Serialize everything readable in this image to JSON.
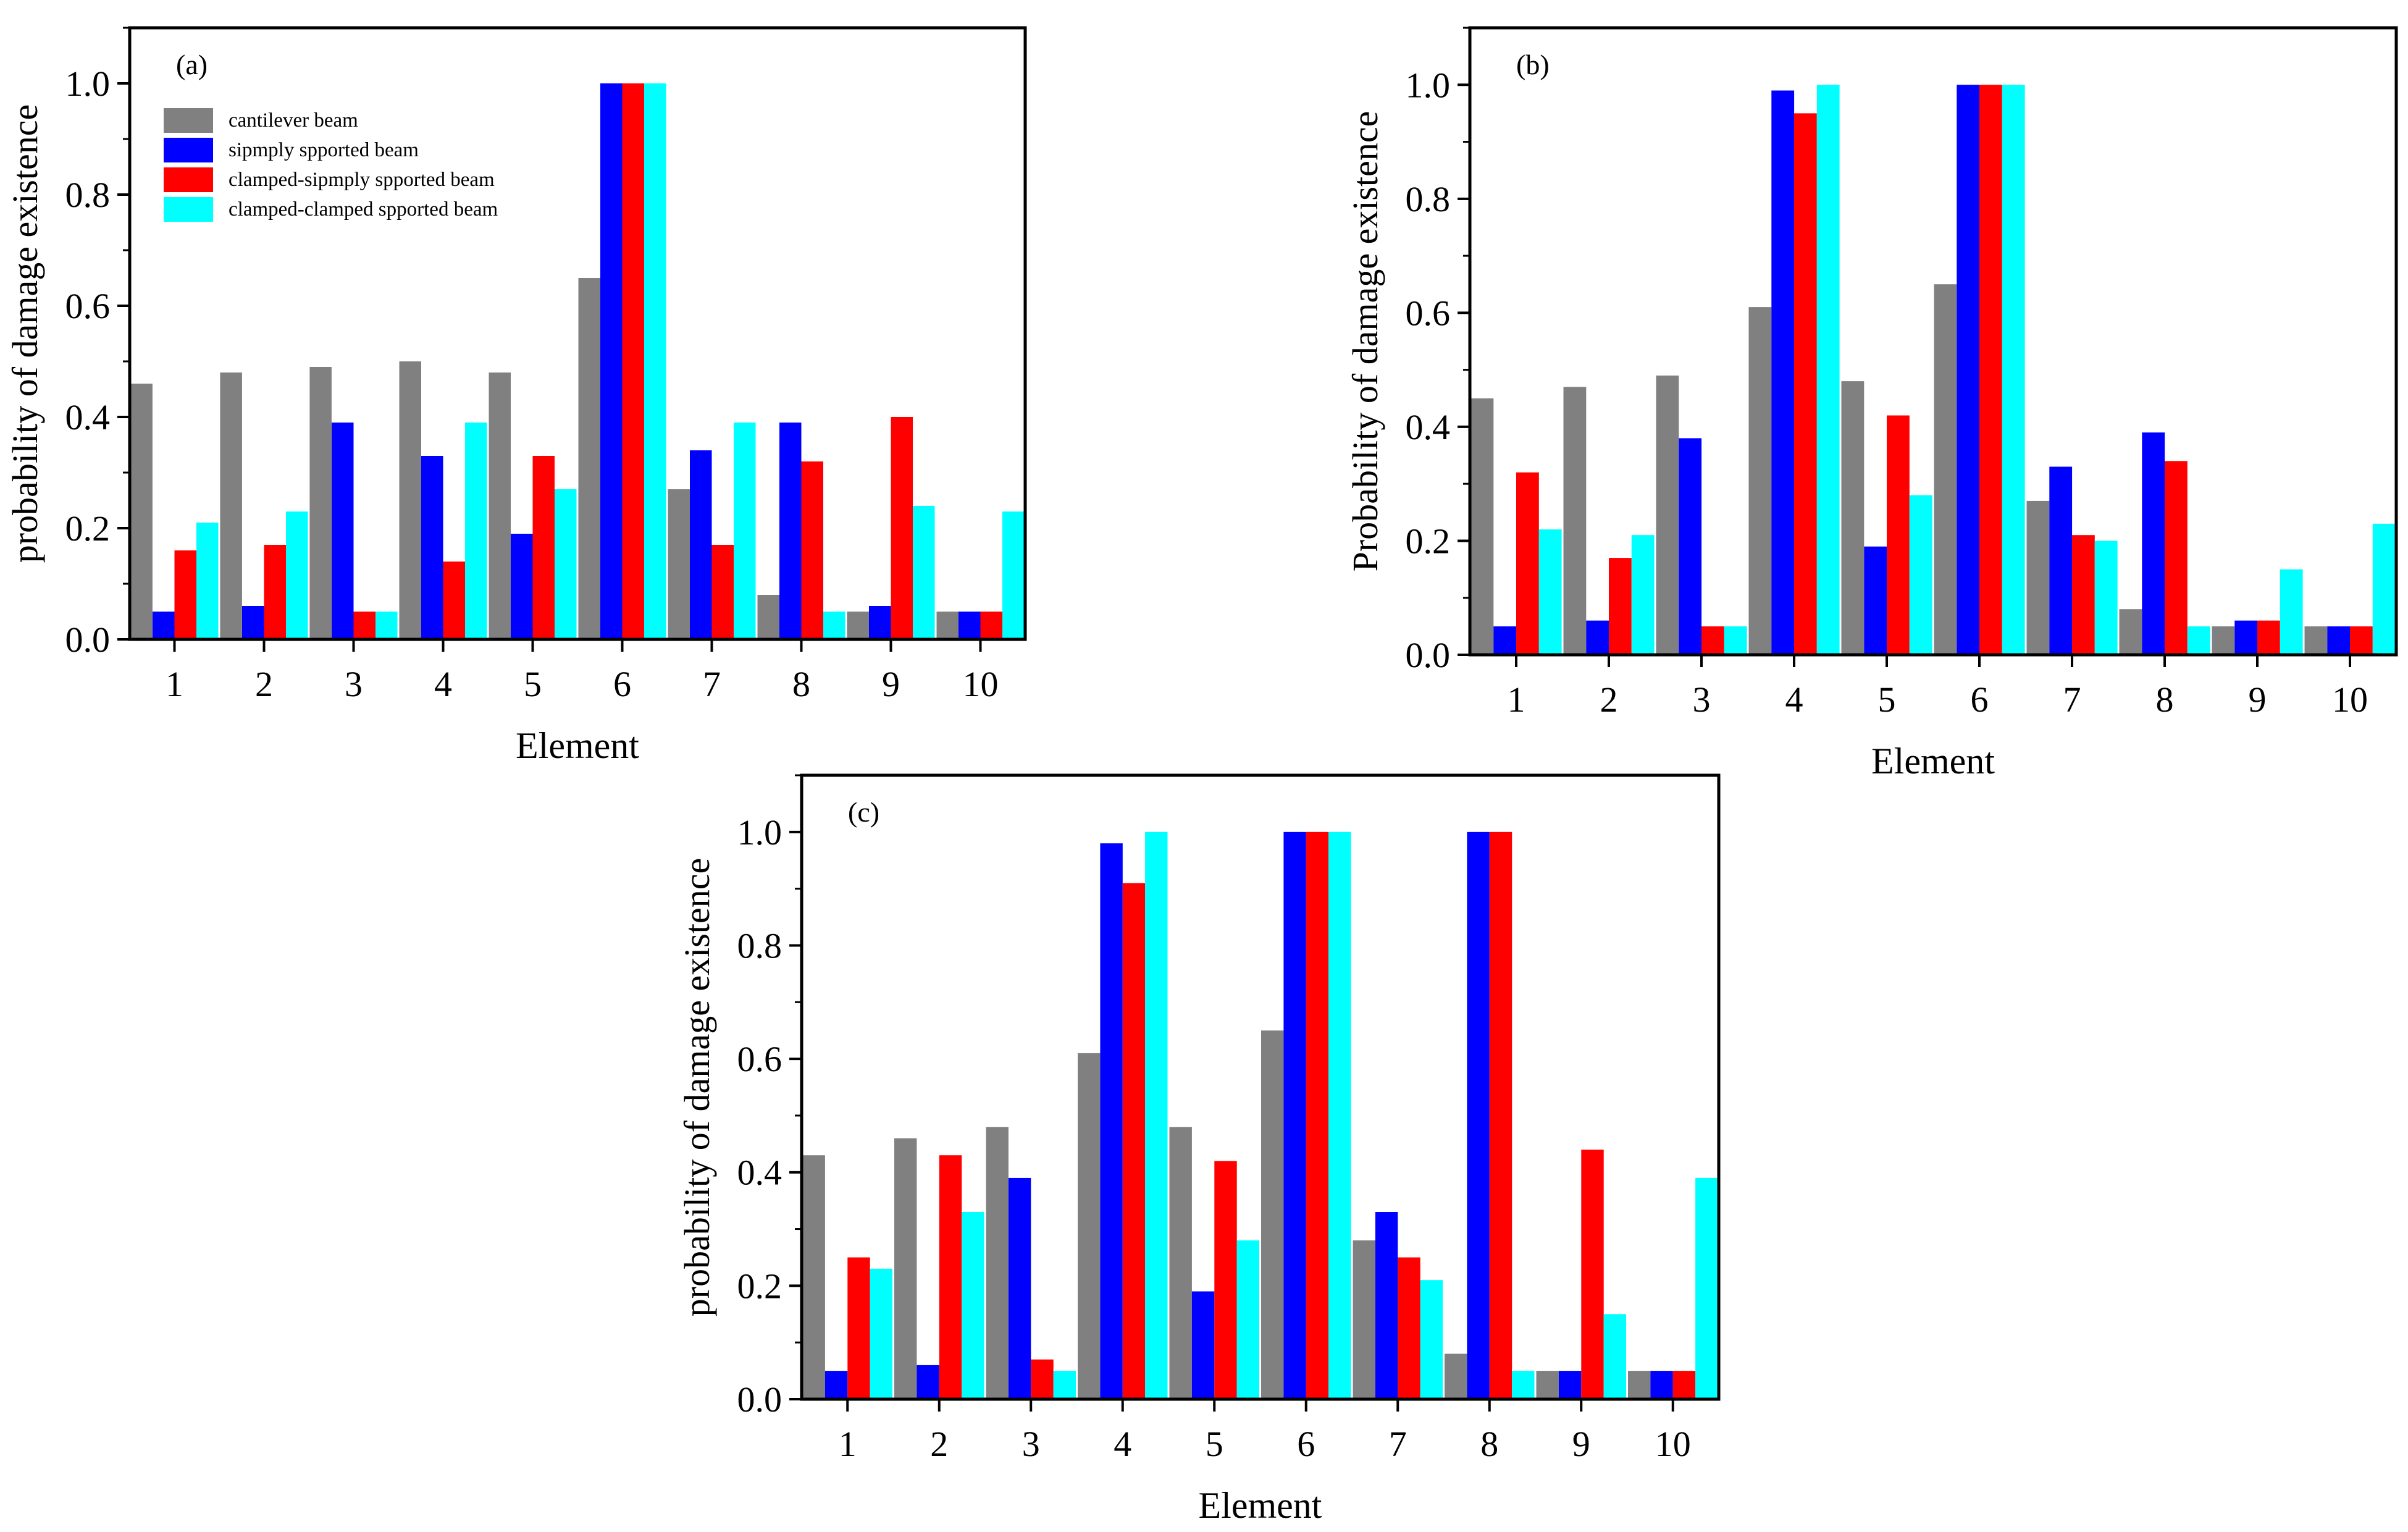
{
  "colors": {
    "cantilever": "#808080",
    "simply": "#0000ff",
    "clamped_simply": "#ff0000",
    "clamped_clamped": "#00ffff"
  },
  "chart_data": [
    {
      "panel": "(a)",
      "type": "bar",
      "xlabel": "Element",
      "ylabel": "probability of damage existence",
      "ylim": [
        0,
        1.1
      ],
      "yticks": [
        "0.0",
        "0.2",
        "0.4",
        "0.6",
        "0.8",
        "1.0"
      ],
      "categories": [
        "1",
        "2",
        "3",
        "4",
        "5",
        "6",
        "7",
        "8",
        "9",
        "10"
      ],
      "legend": {
        "placement": "top-left",
        "entries": [
          "cantilever beam",
          "sipmply spported beam",
          "clamped-sipmply spported beam",
          "clamped-clamped spported beam"
        ]
      },
      "series": [
        {
          "name": "cantilever beam",
          "values": [
            0.46,
            0.48,
            0.49,
            0.5,
            0.48,
            0.65,
            0.27,
            0.08,
            0.05,
            0.05
          ]
        },
        {
          "name": "sipmply spported beam",
          "values": [
            0.05,
            0.06,
            0.39,
            0.33,
            0.19,
            1.0,
            0.34,
            0.39,
            0.06,
            0.05
          ]
        },
        {
          "name": "clamped-sipmply spported beam",
          "values": [
            0.16,
            0.17,
            0.05,
            0.14,
            0.33,
            1.0,
            0.17,
            0.32,
            0.4,
            0.05
          ]
        },
        {
          "name": "clamped-clamped spported beam",
          "values": [
            0.21,
            0.23,
            0.05,
            0.39,
            0.27,
            1.0,
            0.39,
            0.05,
            0.24,
            0.23
          ]
        }
      ]
    },
    {
      "panel": "(b)",
      "type": "bar",
      "xlabel": "Element",
      "ylabel": "Probability of damage existence",
      "ylim": [
        0,
        1.1
      ],
      "yticks": [
        "0.0",
        "0.2",
        "0.4",
        "0.6",
        "0.8",
        "1.0"
      ],
      "categories": [
        "1",
        "2",
        "3",
        "4",
        "5",
        "6",
        "7",
        "8",
        "9",
        "10"
      ],
      "series": [
        {
          "name": "cantilever beam",
          "values": [
            0.45,
            0.47,
            0.49,
            0.61,
            0.48,
            0.65,
            0.27,
            0.08,
            0.05,
            0.05
          ]
        },
        {
          "name": "sipmply spported beam",
          "values": [
            0.05,
            0.06,
            0.38,
            0.99,
            0.19,
            1.0,
            0.33,
            0.39,
            0.06,
            0.05
          ]
        },
        {
          "name": "clamped-sipmply spported beam",
          "values": [
            0.32,
            0.17,
            0.05,
            0.95,
            0.42,
            1.0,
            0.21,
            0.34,
            0.06,
            0.05
          ]
        },
        {
          "name": "clamped-clamped spported beam",
          "values": [
            0.22,
            0.21,
            0.05,
            1.0,
            0.28,
            1.0,
            0.2,
            0.05,
            0.15,
            0.23
          ]
        }
      ]
    },
    {
      "panel": "(c)",
      "type": "bar",
      "xlabel": "Element",
      "ylabel": "probability of damage existence",
      "ylim": [
        0,
        1.1
      ],
      "yticks": [
        "0.0",
        "0.2",
        "0.4",
        "0.6",
        "0.8",
        "1.0"
      ],
      "categories": [
        "1",
        "2",
        "3",
        "4",
        "5",
        "6",
        "7",
        "8",
        "9",
        "10"
      ],
      "series": [
        {
          "name": "cantilever beam",
          "values": [
            0.43,
            0.46,
            0.48,
            0.61,
            0.48,
            0.65,
            0.28,
            0.08,
            0.05,
            0.05
          ]
        },
        {
          "name": "sipmply spported beam",
          "values": [
            0.05,
            0.06,
            0.39,
            0.98,
            0.19,
            1.0,
            0.33,
            1.0,
            0.05,
            0.05
          ]
        },
        {
          "name": "clamped-sipmply spported beam",
          "values": [
            0.25,
            0.43,
            0.07,
            0.91,
            0.42,
            1.0,
            0.25,
            1.0,
            0.44,
            0.05
          ]
        },
        {
          "name": "clamped-clamped spported beam",
          "values": [
            0.23,
            0.33,
            0.05,
            1.0,
            0.28,
            1.0,
            0.21,
            0.05,
            0.15,
            0.39
          ]
        }
      ]
    }
  ]
}
